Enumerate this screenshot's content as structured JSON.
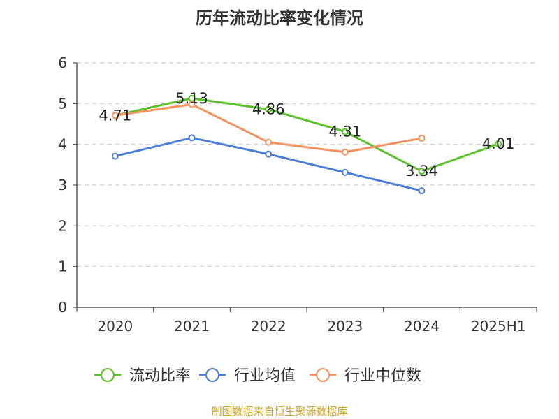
{
  "chart_data": {
    "type": "line",
    "title": "历年流动比率变化情况",
    "categories": [
      "2020",
      "2021",
      "2022",
      "2023",
      "2024",
      "2025H1"
    ],
    "ylim": [
      0,
      6
    ],
    "yticks": [
      0,
      1,
      2,
      3,
      4,
      5,
      6
    ],
    "grid": true,
    "legend_position": "bottom",
    "series": [
      {
        "name": "流动比率",
        "color": "#5cc12b",
        "values": [
          4.71,
          5.13,
          4.86,
          4.31,
          3.34,
          4.01
        ],
        "labels": [
          "4.71",
          "5.13",
          "4.86",
          "4.31",
          "3.34",
          "4.01"
        ]
      },
      {
        "name": "行业均值",
        "color": "#4e7fd8",
        "values": [
          3.71,
          4.16,
          3.76,
          3.31,
          2.86,
          null
        ]
      },
      {
        "name": "行业中位数",
        "color": "#f5925e",
        "values": [
          4.71,
          4.98,
          4.05,
          3.81,
          4.15,
          null
        ]
      }
    ],
    "source": "制图数据来自恒生聚源数据库"
  }
}
